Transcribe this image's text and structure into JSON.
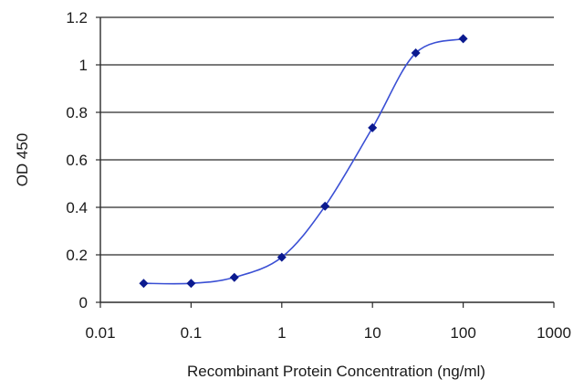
{
  "chart_data": {
    "type": "line",
    "title": "",
    "xlabel": "Recombinant Protein Concentration (ng/ml)",
    "ylabel": "OD 450",
    "x_scale": "log",
    "xlim": [
      0.01,
      1000
    ],
    "ylim": [
      0,
      1.2
    ],
    "grid": true,
    "legend": "none",
    "x_ticks": [
      "0.01",
      "0.1",
      "1",
      "10",
      "100",
      "1000"
    ],
    "y_ticks": [
      "0",
      "0.2",
      "0.4",
      "0.6",
      "0.8",
      "1",
      "1.2"
    ],
    "series": [
      {
        "x": [
          0.03,
          0.1,
          0.3,
          1,
          3,
          10,
          30,
          100
        ],
        "y": [
          0.08,
          0.08,
          0.105,
          0.19,
          0.405,
          0.735,
          1.05,
          1.11
        ]
      }
    ],
    "line_color": "#3a4fd4",
    "marker_color": "#0b1a8f",
    "grid_color": "#2b2b2b",
    "plot_background": "#ffffff"
  }
}
